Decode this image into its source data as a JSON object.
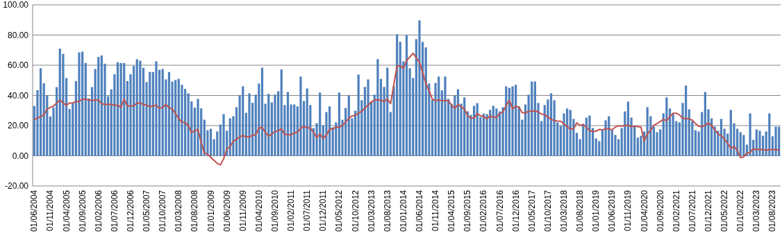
{
  "chart_data": {
    "type": "bar",
    "categories": [
      "01/06/2004",
      null,
      null,
      null,
      null,
      "01/11/2004",
      null,
      null,
      null,
      null,
      "01/04/2005",
      null,
      null,
      null,
      null,
      "01/09/2005",
      null,
      null,
      null,
      null,
      "01/02/2006",
      null,
      null,
      null,
      null,
      "01/07/2006",
      null,
      null,
      null,
      null,
      "01/12/2006",
      null,
      null,
      null,
      null,
      "01/05/2007",
      null,
      null,
      null,
      null,
      "01/10/2007",
      null,
      null,
      null,
      null,
      "01/03/2008",
      null,
      null,
      null,
      null,
      "01/08/2008",
      null,
      null,
      null,
      null,
      "01/01/2009",
      null,
      null,
      null,
      null,
      "01/06/2009",
      null,
      null,
      null,
      null,
      "01/11/2009",
      null,
      null,
      null,
      null,
      "01/04/2010",
      null,
      null,
      null,
      null,
      "01/09/2010",
      null,
      null,
      null,
      null,
      "01/02/2011",
      null,
      null,
      null,
      null,
      "01/07/2011",
      null,
      null,
      null,
      null,
      "01/12/2011",
      null,
      null,
      null,
      null,
      "01/05/2012",
      null,
      null,
      null,
      null,
      "01/10/2012",
      null,
      null,
      null,
      null,
      "01/03/2013",
      null,
      null,
      null,
      null,
      "01/08/2013",
      null,
      null,
      null,
      null,
      "01/01/2014",
      null,
      null,
      null,
      null,
      "01/06/2014",
      null,
      null,
      null,
      null,
      "01/11/2014",
      null,
      null,
      null,
      null,
      "01/04/2015",
      null,
      null,
      null,
      null,
      "01/09/2015",
      null,
      null,
      null,
      null,
      "01/02/2016",
      null,
      null,
      null,
      null,
      "01/07/2016",
      null,
      null,
      null,
      null,
      "01/12/2016",
      null,
      null,
      null,
      null,
      "01/05/2017",
      null,
      null,
      null,
      null,
      "01/10/2017",
      null,
      null,
      null,
      null,
      "01/03/2018",
      null,
      null,
      null,
      null,
      "01/08/2018",
      null,
      null,
      null,
      null,
      "01/01/2019",
      null,
      null,
      null,
      null,
      "01/06/2019",
      null,
      null,
      null,
      null,
      "01/11/2019",
      null,
      null,
      null,
      null,
      "01/04/2020",
      null,
      null,
      null,
      null,
      "01/09/2020",
      null,
      null,
      null,
      null,
      "01/02/2021",
      null,
      null,
      null,
      null,
      "01/07/2021",
      null,
      null,
      null,
      null,
      "01/12/2021",
      null,
      null,
      null,
      null,
      "01/05/2022",
      null,
      null,
      null,
      null,
      "01/10/2022",
      null,
      null,
      null,
      null,
      "01/03/2023",
      null,
      null,
      null,
      null,
      "01/08/2023",
      null,
      null
    ],
    "series": [
      {
        "color": "#4f81bd",
        "values": [
          33,
          43.5,
          58,
          48,
          40,
          26,
          32,
          45.5,
          71,
          67.5,
          51.5,
          31,
          35,
          49.5,
          68.5,
          69,
          61.5,
          38,
          45.5,
          57.5,
          65.5,
          66.5,
          61,
          39.5,
          44,
          54,
          62,
          61.5,
          61.5,
          49.5,
          54,
          59.5,
          64,
          63,
          58.3,
          48.8,
          55.5,
          55.5,
          62.6,
          57,
          57.5,
          50.6,
          55.5,
          49.2,
          50.2,
          51,
          47,
          44.3,
          41.4,
          36,
          31.9,
          37.7,
          31.4,
          23.9,
          17,
          17.9,
          11,
          16.1,
          20.7,
          27.6,
          16.6,
          24.8,
          26.2,
          32.2,
          40,
          46,
          28.5,
          41.4,
          35.1,
          40.5,
          47.9,
          58.4,
          34.5,
          41,
          35.4,
          40.5,
          42.8,
          57.2,
          33.6,
          42.3,
          34,
          34,
          32.7,
          52.5,
          36.3,
          44.6,
          33.6,
          18.4,
          21.6,
          41.9,
          20.2,
          29,
          32.7,
          18.9,
          22.1,
          41.9,
          23.9,
          31.7,
          40,
          24.8,
          29.9,
          53.8,
          36.8,
          45.6,
          50.6,
          36,
          40.5,
          64,
          51,
          45.6,
          58.4,
          29,
          46,
          80.5,
          75.5,
          62.6,
          80,
          58,
          51.5,
          77.3,
          89.7,
          75.5,
          71.8,
          47.9,
          37,
          48.3,
          52.5,
          43.3,
          52.5,
          37.7,
          34.5,
          40,
          44.1,
          34.5,
          38.7,
          29.4,
          27.1,
          33.1,
          34.9,
          25.7,
          28,
          27.6,
          30.4,
          33.1,
          31.3,
          29.4,
          32.2,
          46,
          45,
          46,
          47,
          32.7,
          23.9,
          34,
          40.5,
          49.2,
          49.2,
          35,
          23,
          33.6,
          37.3,
          41.4,
          36.8,
          22.1,
          19.8,
          28.1,
          31.3,
          30.4,
          24.4,
          15.2,
          11,
          21.2,
          25.3,
          26.7,
          18.4,
          11.5,
          9.7,
          17,
          23.5,
          26.2,
          17,
          13.8,
          11,
          18.4,
          29.4,
          35.9,
          25.3,
          19.8,
          12,
          13.3,
          16.1,
          32.2,
          26.2,
          19.3,
          15.6,
          17.5,
          28.1,
          38.7,
          31.3,
          27.6,
          23,
          22.1,
          35,
          46.5,
          30.8,
          23,
          17,
          16.1,
          29,
          42.3,
          30.8,
          24.8,
          19.3,
          16.6,
          24.4,
          17.9,
          14.7,
          30.4,
          21.6,
          17.9,
          15.6,
          13.8,
          7.4,
          28.1,
          10.6,
          17.5,
          16.6,
          13.3,
          16.1,
          28.1,
          12.9,
          19.3,
          19.3
        ]
      },
      {
        "type": "line",
        "color": "#c0504d",
        "values": [
          24,
          25,
          26,
          27,
          31,
          32,
          33,
          35,
          37,
          35,
          33.5,
          35,
          35,
          36,
          36,
          37.5,
          37.5,
          37,
          36.5,
          37,
          37,
          34.5,
          34,
          34,
          34,
          33.5,
          33.5,
          32,
          37.5,
          33,
          33,
          33,
          35,
          35,
          34,
          33.5,
          32.5,
          33,
          33.5,
          31.5,
          32,
          34,
          32,
          31,
          28,
          24.5,
          22.5,
          22,
          20,
          15.5,
          16.5,
          17.5,
          9,
          2,
          1,
          -1,
          -3,
          -5,
          -6,
          -2,
          4.5,
          6,
          9.5,
          11,
          12.5,
          13.5,
          12.5,
          12.5,
          13.5,
          14,
          18.4,
          18.7,
          15.6,
          12.9,
          14.4,
          16.1,
          16.6,
          17.9,
          14.1,
          14.1,
          13.8,
          15.2,
          15.6,
          18.4,
          19.2,
          18.7,
          18.3,
          15.6,
          12,
          14.4,
          11.5,
          13.7,
          17.6,
          17.8,
          19,
          18.9,
          20.2,
          22.5,
          24.8,
          26.4,
          26.8,
          28.4,
          29.4,
          31.7,
          33.5,
          35.6,
          37,
          37,
          36.8,
          35.9,
          37.7,
          34.5,
          47,
          59.5,
          59.5,
          58,
          63,
          65.5,
          68,
          65,
          62,
          55,
          48,
          43,
          37.5,
          36.5,
          37,
          36.5,
          36.5,
          36.5,
          33.5,
          31.5,
          34,
          32.5,
          31,
          26.5,
          25,
          25,
          28,
          26.5,
          26,
          24.5,
          26.5,
          25.5,
          25.5,
          28,
          29,
          33.3,
          36.8,
          31,
          32.8,
          32.2,
          28.5,
          28.5,
          29.4,
          29.4,
          29.9,
          29.1,
          27.6,
          27.3,
          25.6,
          24.2,
          23.3,
          23,
          22.9,
          21.2,
          19.3,
          17.6,
          17.9,
          21.8,
          20.1,
          20.6,
          19,
          16.7,
          16.1,
          16.3,
          17.5,
          17.2,
          17.9,
          17.9,
          17.2,
          19,
          19.8,
          19.6,
          20.1,
          20.2,
          19.3,
          19.6,
          19.3,
          19,
          9.8,
          14.6,
          16.7,
          20.2,
          21.3,
          22.7,
          24.1,
          23.3,
          26,
          28.2,
          28.2,
          27.1,
          24.8,
          24.7,
          24.4,
          23.6,
          21.3,
          19.5,
          19.3,
          20.2,
          21.8,
          20.2,
          17.2,
          14.4,
          13.3,
          11,
          8.3,
          4.9,
          6.1,
          3.7,
          -1.2,
          -0.8,
          1.8,
          2.1,
          4.6,
          4.1,
          4.3,
          4.1,
          3.7,
          4,
          4.1,
          4.1,
          3.8
        ]
      }
    ],
    "ylim": [
      -20,
      100
    ],
    "yticks": [
      {
        "value": -20,
        "label": "-20.00"
      },
      {
        "value": 0,
        "label": "0.00"
      },
      {
        "value": 20,
        "label": "20.00"
      },
      {
        "value": 40,
        "label": "40.00"
      },
      {
        "value": 60,
        "label": "60.00"
      },
      {
        "value": 80,
        "label": "80.00"
      },
      {
        "value": 100,
        "label": "100.00"
      }
    ],
    "grid": "y"
  }
}
